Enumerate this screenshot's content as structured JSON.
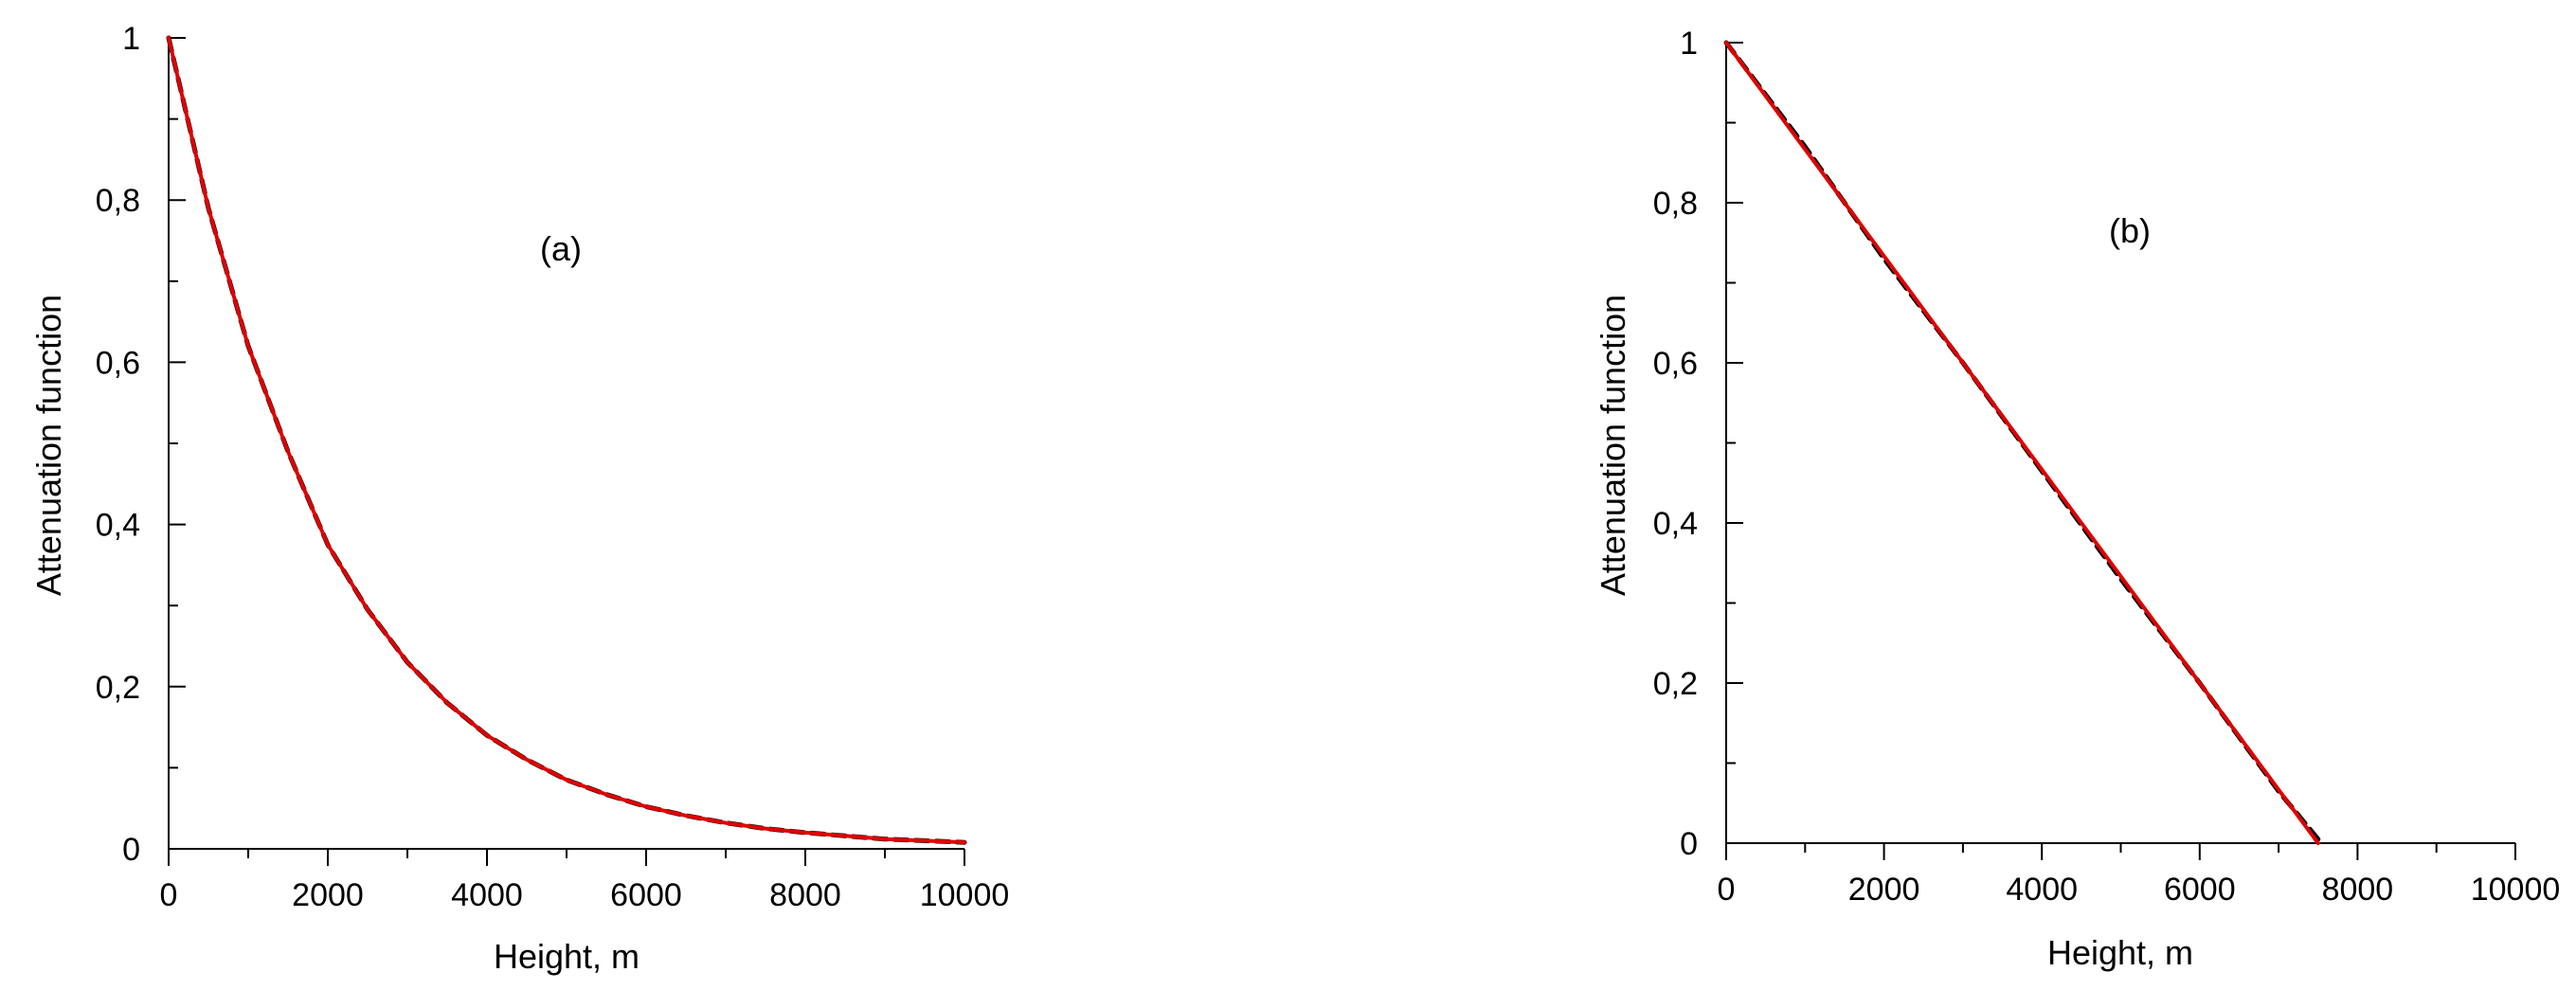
{
  "chart_data": [
    {
      "type": "line",
      "panel_label": "(a)",
      "xlabel": "Height, m",
      "ylabel": "Attenuation function",
      "xlim": [
        0,
        10000
      ],
      "ylim": [
        0,
        1
      ],
      "x_ticks": [
        0,
        2000,
        4000,
        6000,
        8000,
        10000
      ],
      "x_tick_labels": [
        "0",
        "2000",
        "4000",
        "6000",
        "8000",
        "10000"
      ],
      "y_ticks": [
        0,
        0.2,
        0.4,
        0.6,
        0.8,
        1
      ],
      "y_tick_labels": [
        "0",
        "0,2",
        "0,4",
        "0,6",
        "0,8",
        "1"
      ],
      "grid": false,
      "series": [
        {
          "color": "#000000",
          "dash": "dashed",
          "x": [
            0,
            500,
            1000,
            1500,
            2000,
            2500,
            3000,
            3500,
            4000,
            4500,
            5000,
            5500,
            6000,
            6500,
            7000,
            7500,
            8000,
            8500,
            9000,
            9500,
            10000
          ],
          "y": [
            1.0,
            0.79,
            0.62,
            0.49,
            0.375,
            0.295,
            0.23,
            0.18,
            0.14,
            0.11,
            0.085,
            0.067,
            0.052,
            0.041,
            0.032,
            0.025,
            0.02,
            0.016,
            0.012,
            0.01,
            0.008
          ]
        },
        {
          "color": "#e00000",
          "dash": "solid",
          "x": [
            0,
            500,
            1000,
            1500,
            2000,
            2500,
            3000,
            3500,
            4000,
            4500,
            5000,
            5500,
            6000,
            6500,
            7000,
            7500,
            8000,
            8500,
            9000,
            9500,
            10000
          ],
          "y": [
            1.0,
            0.79,
            0.62,
            0.49,
            0.375,
            0.295,
            0.23,
            0.18,
            0.14,
            0.11,
            0.085,
            0.067,
            0.052,
            0.041,
            0.032,
            0.025,
            0.02,
            0.016,
            0.012,
            0.01,
            0.008
          ]
        }
      ]
    },
    {
      "type": "line",
      "panel_label": "(b)",
      "xlabel": "Height, m",
      "ylabel": "Attenuation function",
      "xlim": [
        0,
        10000
      ],
      "ylim": [
        0,
        1
      ],
      "x_ticks": [
        0,
        2000,
        4000,
        6000,
        8000,
        10000
      ],
      "x_tick_labels": [
        "0",
        "2000",
        "4000",
        "6000",
        "8000",
        "10000"
      ],
      "y_ticks": [
        0,
        0.2,
        0.4,
        0.6,
        0.8,
        1
      ],
      "y_tick_labels": [
        "0",
        "0,2",
        "0,4",
        "0,6",
        "0,8",
        "1"
      ],
      "grid": false,
      "series": [
        {
          "color": "#000000",
          "dash": "dashed",
          "x": [
            0,
            1000,
            2000,
            3000,
            4000,
            5000,
            6000,
            7000,
            7500
          ],
          "y": [
            1.0,
            0.87,
            0.73,
            0.6,
            0.465,
            0.33,
            0.2,
            0.065,
            0.005
          ]
        },
        {
          "color": "#e00000",
          "dash": "solid",
          "x": [
            0,
            7500
          ],
          "y": [
            1.0,
            0.0
          ]
        }
      ]
    }
  ]
}
